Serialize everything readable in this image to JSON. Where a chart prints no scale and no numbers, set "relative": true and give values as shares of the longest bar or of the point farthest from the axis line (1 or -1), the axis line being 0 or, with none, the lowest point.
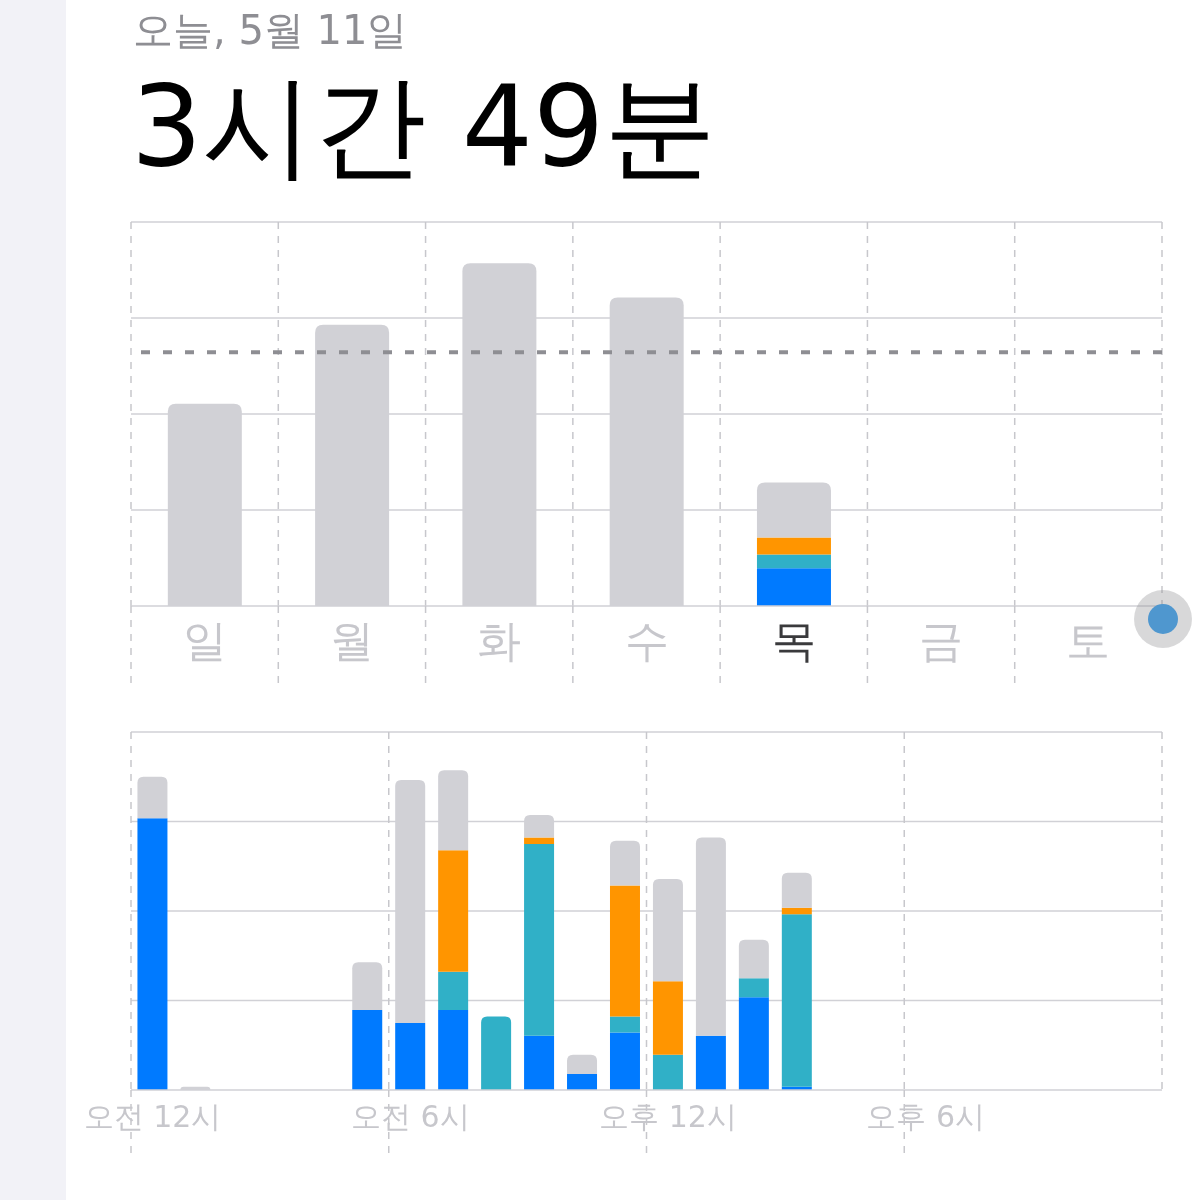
{
  "chart_data": [
    {
      "type": "bar",
      "subtitle": "오늘, 5월 11일",
      "title": "3시간 49분",
      "categories": [
        "일",
        "월",
        "화",
        "수",
        "목",
        "금",
        "토"
      ],
      "stacked": true,
      "relative": true,
      "series": [
        {
          "color": "#007aff",
          "values": [
            null,
            null,
            null,
            null,
            0.11,
            null,
            null
          ]
        },
        {
          "color": "#30b0c7",
          "values": [
            null,
            null,
            null,
            null,
            0.04,
            null,
            null
          ]
        },
        {
          "color": "#ff9500",
          "values": [
            null,
            null,
            null,
            null,
            0.05,
            null,
            null
          ]
        },
        {
          "color": "#d1d1d6",
          "values": [
            0.59,
            0.82,
            1,
            0.9,
            0.16,
            null,
            null
          ]
        }
      ],
      "ref_lines": [
        {
          "axis": "y",
          "value": 0.74,
          "color": "#8e8e93",
          "line_style": "dashed"
        }
      ],
      "grid": true
    },
    {
      "type": "bar",
      "categories": [
        "오전 12시",
        null,
        null,
        null,
        null,
        null,
        "오전 6시",
        null,
        null,
        null,
        null,
        null,
        "오후 12시",
        null,
        null,
        null,
        null,
        null,
        "오후 6시",
        null,
        null,
        null,
        null,
        null
      ],
      "stacked": true,
      "relative": true,
      "series": [
        {
          "color": "#007aff",
          "values": [
            0.85,
            null,
            null,
            null,
            null,
            0.25,
            0.21,
            0.25,
            null,
            0.17,
            0.05,
            0.18,
            null,
            0.17,
            0.29,
            0.01,
            null,
            null,
            null,
            null,
            null,
            null,
            null,
            null
          ]
        },
        {
          "color": "#30b0c7",
          "values": [
            null,
            null,
            null,
            null,
            null,
            null,
            null,
            0.12,
            0.23,
            0.6,
            null,
            0.05,
            0.11,
            null,
            0.06,
            0.54,
            null,
            null,
            null,
            null,
            null,
            null,
            null,
            null
          ]
        },
        {
          "color": "#ff9500",
          "values": [
            null,
            null,
            null,
            null,
            null,
            null,
            null,
            0.38,
            null,
            0.02,
            null,
            0.41,
            0.23,
            null,
            null,
            0.02,
            null,
            null,
            null,
            null,
            null,
            null,
            null,
            null
          ]
        },
        {
          "color": "#d1d1d6",
          "values": [
            0.13,
            0.01,
            null,
            null,
            null,
            0.15,
            0.76,
            0.25,
            null,
            0.07,
            0.06,
            0.14,
            0.32,
            0.62,
            0.12,
            0.11,
            null,
            null,
            null,
            null,
            null,
            null,
            null,
            null
          ]
        }
      ],
      "grid": true
    }
  ]
}
